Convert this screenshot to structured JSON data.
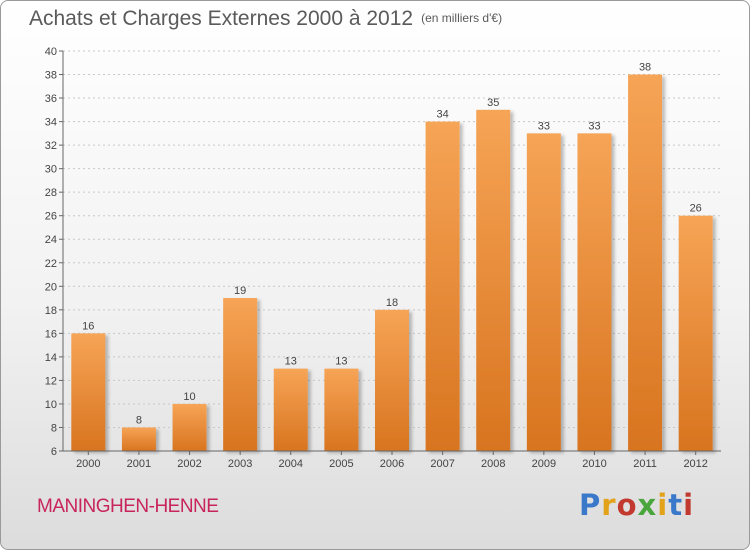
{
  "header": {
    "title": "Achats et Charges Externes 2000 à 2012",
    "unit": "(en milliers d'€)"
  },
  "footer": {
    "commune": "MANINGHEN-HENNE",
    "logo_text": "Proxiti",
    "logo_colors": [
      "#3a78c9",
      "#e2a21a",
      "#c23a2f",
      "#4aa63c",
      "#e2a21a",
      "#3a78c9",
      "#c23a2f"
    ]
  },
  "chart_data": {
    "type": "bar",
    "categories": [
      "2000",
      "2001",
      "2002",
      "2003",
      "2004",
      "2005",
      "2006",
      "2007",
      "2008",
      "2009",
      "2010",
      "2011",
      "2012"
    ],
    "values": [
      16,
      8,
      10,
      19,
      13,
      13,
      18,
      34,
      35,
      33,
      33,
      38,
      26
    ],
    "title": "Achats et Charges Externes 2000 à 2012",
    "ylim": [
      6,
      40
    ],
    "yticks": [
      6,
      8,
      10,
      12,
      14,
      16,
      18,
      20,
      22,
      24,
      26,
      28,
      30,
      32,
      34,
      36,
      38,
      40
    ],
    "grid": true,
    "bar_color": "#f39c4a",
    "bar_color_dark": "#d8741f"
  }
}
